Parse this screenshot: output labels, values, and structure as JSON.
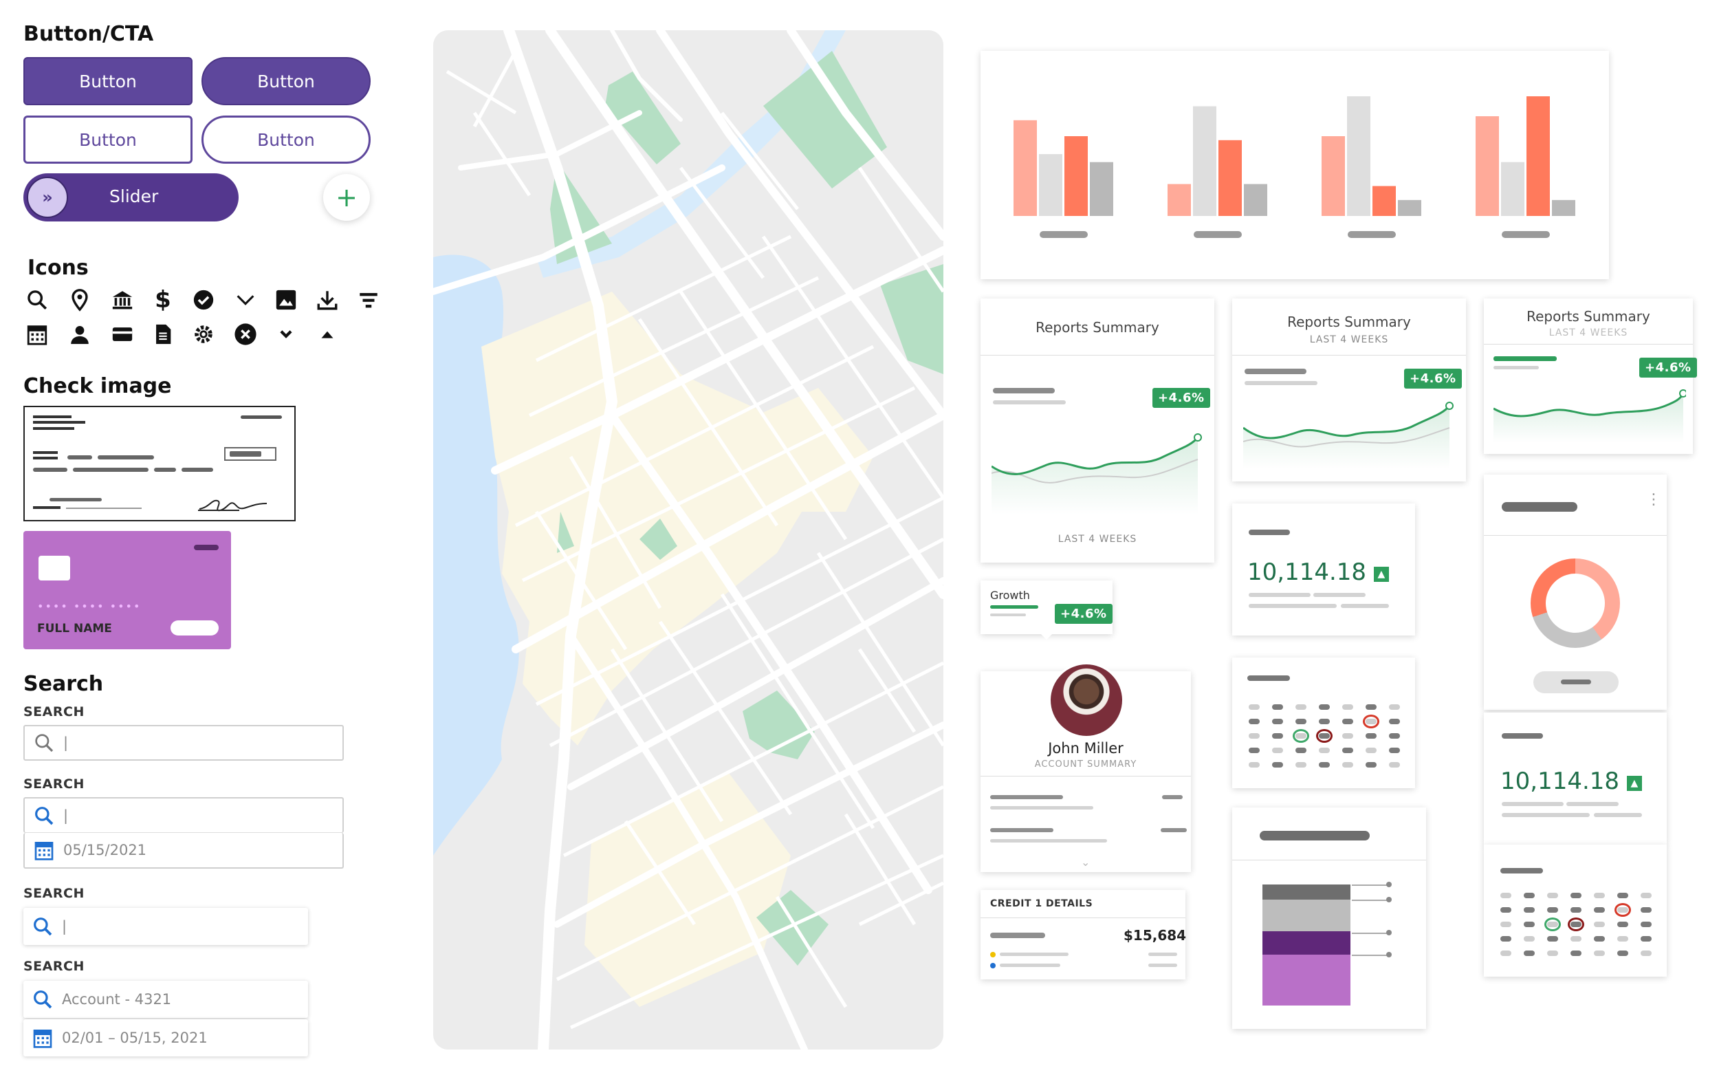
{
  "sections": {
    "buttons": "Button/CTA",
    "icons": "Icons",
    "check": "Check image",
    "search": "Search"
  },
  "buttons": {
    "primary_square": "Button",
    "primary_pill": "Button",
    "outline_square": "Button",
    "outline_pill": "Button",
    "slider": "Slider",
    "plus": "+"
  },
  "icons": [
    "search-icon",
    "location-icon",
    "bank-icon",
    "dollar-icon",
    "check-circle-icon",
    "chevron-down-icon",
    "image-icon",
    "download-icon",
    "filter-icon",
    "calendar-icon",
    "person-icon",
    "card-icon",
    "document-icon",
    "gear-icon",
    "close-circle-icon",
    "chevron-small-down-icon",
    "caret-up-icon"
  ],
  "card": {
    "number": "•••• •••• ••••",
    "name": "FULL NAME"
  },
  "search": {
    "label1": "SEARCH",
    "label2": "SEARCH",
    "label3": "SEARCH",
    "label4": "SEARCH",
    "date1": "05/15/2021",
    "account": "Account - 4321",
    "range": "02/01 – 05/15, 2021",
    "cursor": "|"
  },
  "colors": {
    "brand_purple": "#5e479c",
    "accent_green": "#2e9e5b",
    "coral": "#ff7a5c",
    "card_purple": "#b970c8"
  },
  "chart_data": {
    "type": "bar",
    "categories": [
      "",
      "",
      "",
      ""
    ],
    "series": [
      {
        "values": [
          96,
          32,
          80,
          100
        ],
        "color": "#ffaa99"
      },
      {
        "values": [
          62,
          110,
          120,
          54
        ],
        "color": "#dedede"
      },
      {
        "values": [
          80,
          76,
          30,
          120
        ],
        "color": "#ff7a5c"
      },
      {
        "values": [
          54,
          32,
          16,
          16
        ],
        "color": "#b8b8b8"
      }
    ]
  },
  "reports": {
    "title1": "Reports Summary",
    "title2": "Reports Summary",
    "title3": "Reports Summary",
    "sub2": "LAST 4 WEEKS",
    "sub3": "LAST 4 WEEKS",
    "footer1": "LAST 4 WEEKS",
    "badge1": "+4.6%",
    "badge2": "+4.6%",
    "badge3": "+4.6%"
  },
  "growth": {
    "label": "Growth",
    "badge": "+4.6%"
  },
  "balance": {
    "value1": "10,114.18",
    "value2": "10,114.18"
  },
  "profile": {
    "name": "John Miller",
    "sub": "ACCOUNT SUMMARY"
  },
  "credit": {
    "title": "CREDIT 1 DETAILS",
    "amount": "$15,684"
  }
}
